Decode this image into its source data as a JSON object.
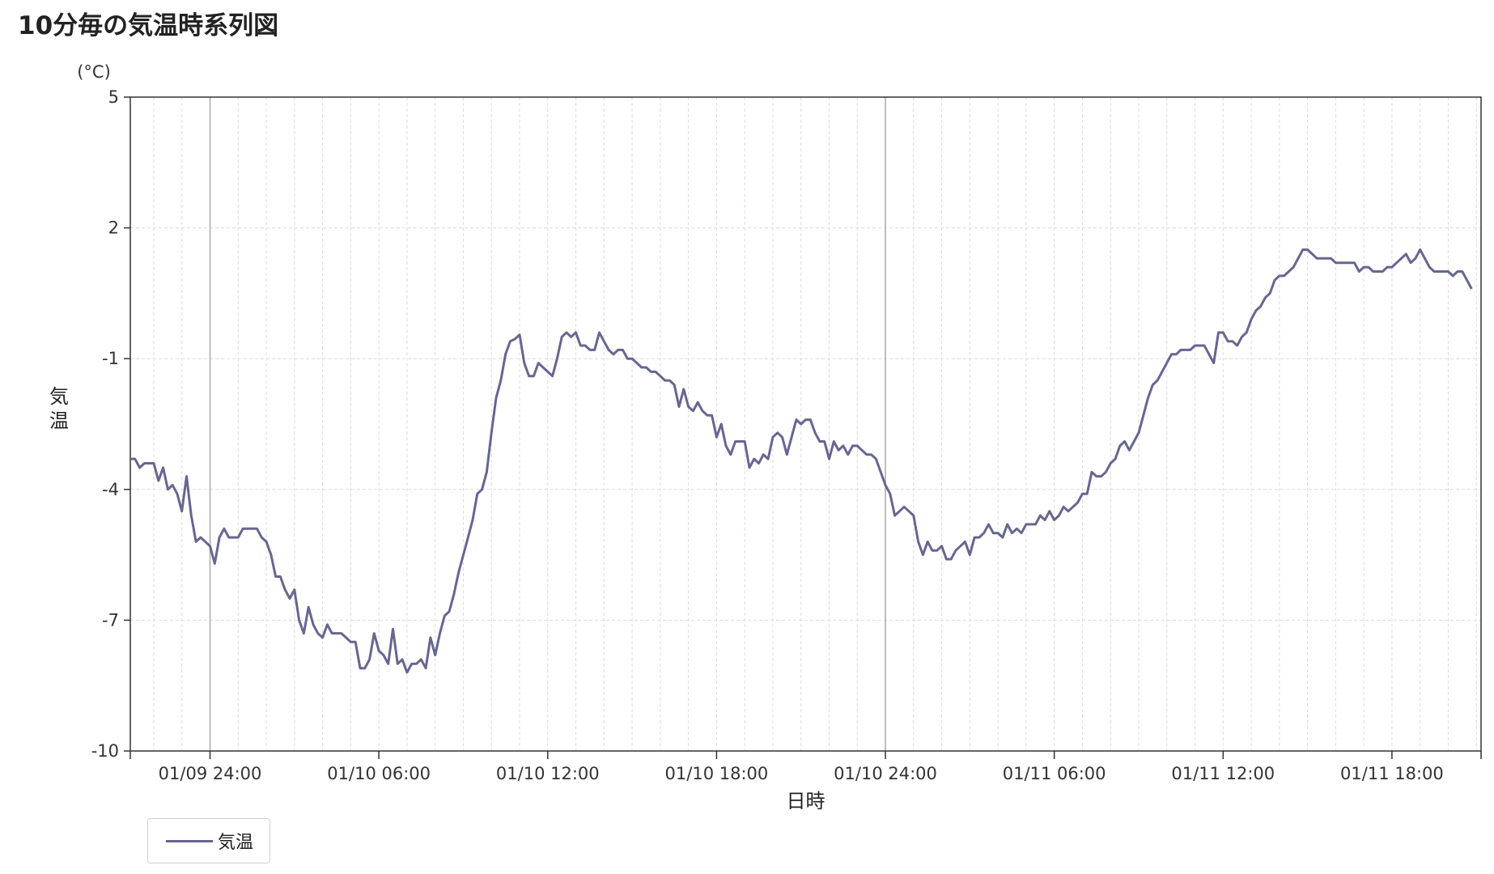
{
  "title": "10分毎の気温時系列図",
  "legend": {
    "label": "気温",
    "color": "#666690"
  },
  "chart_data": {
    "type": "line",
    "title": "10分毎の気温時系列図",
    "xlabel": "日時",
    "ylabel": "気温",
    "yunit": "(°C)",
    "ylim": [
      -10,
      5
    ],
    "yticks": [
      5,
      2,
      -1,
      -4,
      -7,
      -10
    ],
    "xrange": [
      "2025-01-09T21:10",
      "2025-01-11T21:10"
    ],
    "xticks": [
      {
        "time": "2025-01-10T00:00",
        "label": "01/09 24:00",
        "major": true
      },
      {
        "time": "2025-01-10T06:00",
        "label": "01/10 06:00",
        "major": false
      },
      {
        "time": "2025-01-10T12:00",
        "label": "01/10 12:00",
        "major": false
      },
      {
        "time": "2025-01-10T18:00",
        "label": "01/10 18:00",
        "major": false
      },
      {
        "time": "2025-01-11T00:00",
        "label": "01/10 24:00",
        "major": true
      },
      {
        "time": "2025-01-11T06:00",
        "label": "01/11 06:00",
        "major": false
      },
      {
        "time": "2025-01-11T12:00",
        "label": "01/11 12:00",
        "major": false
      },
      {
        "time": "2025-01-11T18:00",
        "label": "01/11 18:00",
        "major": false
      }
    ],
    "grid": true,
    "legend_position": "bottom-left",
    "series": [
      {
        "name": "気温",
        "color": "#666690",
        "interval_minutes": 10,
        "start": "2025-01-09T21:10",
        "values": [
          -3.3,
          -3.3,
          -3.5,
          -3.4,
          -3.4,
          -3.4,
          -3.8,
          -3.5,
          -4.0,
          -3.9,
          -4.1,
          -4.5,
          -3.7,
          -4.6,
          -5.2,
          -5.1,
          -5.2,
          -5.3,
          -5.7,
          -5.1,
          -4.9,
          -5.1,
          -5.1,
          -5.1,
          -4.9,
          -4.9,
          -4.9,
          -4.9,
          -5.1,
          -5.2,
          -5.5,
          -6.0,
          -6.0,
          -6.3,
          -6.5,
          -6.3,
          -7.0,
          -7.3,
          -6.7,
          -7.1,
          -7.3,
          -7.4,
          -7.1,
          -7.3,
          -7.3,
          -7.3,
          -7.4,
          -7.5,
          -7.5,
          -8.1,
          -8.1,
          -7.9,
          -7.3,
          -7.7,
          -7.8,
          -8.0,
          -7.2,
          -8.0,
          -7.9,
          -8.2,
          -8.0,
          -8.0,
          -7.9,
          -8.1,
          -7.4,
          -7.8,
          -7.3,
          -6.9,
          -6.8,
          -6.4,
          -5.9,
          -5.5,
          -5.1,
          -4.7,
          -4.1,
          -4.0,
          -3.6,
          -2.7,
          -1.9,
          -1.5,
          -0.9,
          -0.6,
          -0.55,
          -0.45,
          -1.1,
          -1.4,
          -1.4,
          -1.1,
          -1.2,
          -1.3,
          -1.4,
          -1.0,
          -0.5,
          -0.4,
          -0.5,
          -0.4,
          -0.7,
          -0.7,
          -0.8,
          -0.8,
          -0.4,
          -0.6,
          -0.8,
          -0.9,
          -0.8,
          -0.8,
          -1.0,
          -1.0,
          -1.1,
          -1.2,
          -1.2,
          -1.3,
          -1.3,
          -1.4,
          -1.5,
          -1.5,
          -1.6,
          -2.1,
          -1.7,
          -2.1,
          -2.2,
          -2.0,
          -2.2,
          -2.3,
          -2.3,
          -2.8,
          -2.5,
          -3.0,
          -3.2,
          -2.9,
          -2.9,
          -2.9,
          -3.5,
          -3.3,
          -3.4,
          -3.2,
          -3.3,
          -2.8,
          -2.7,
          -2.8,
          -3.2,
          -2.8,
          -2.4,
          -2.5,
          -2.4,
          -2.4,
          -2.7,
          -2.9,
          -2.9,
          -3.3,
          -2.9,
          -3.1,
          -3.0,
          -3.2,
          -3.0,
          -3.0,
          -3.1,
          -3.2,
          -3.2,
          -3.3,
          -3.6,
          -3.9,
          -4.1,
          -4.6,
          -4.5,
          -4.4,
          -4.5,
          -4.6,
          -5.2,
          -5.5,
          -5.2,
          -5.4,
          -5.4,
          -5.3,
          -5.6,
          -5.6,
          -5.4,
          -5.3,
          -5.2,
          -5.5,
          -5.1,
          -5.1,
          -5.0,
          -4.8,
          -5.0,
          -5.0,
          -5.1,
          -4.8,
          -5.0,
          -4.9,
          -5.0,
          -4.8,
          -4.8,
          -4.8,
          -4.6,
          -4.7,
          -4.5,
          -4.7,
          -4.6,
          -4.4,
          -4.5,
          -4.4,
          -4.3,
          -4.1,
          -4.1,
          -3.6,
          -3.7,
          -3.7,
          -3.6,
          -3.4,
          -3.3,
          -3.0,
          -2.9,
          -3.1,
          -2.9,
          -2.7,
          -2.3,
          -1.9,
          -1.6,
          -1.5,
          -1.3,
          -1.1,
          -0.9,
          -0.9,
          -0.8,
          -0.8,
          -0.8,
          -0.7,
          -0.7,
          -0.7,
          -0.9,
          -1.1,
          -0.4,
          -0.4,
          -0.6,
          -0.6,
          -0.7,
          -0.5,
          -0.4,
          -0.1,
          0.1,
          0.2,
          0.4,
          0.5,
          0.8,
          0.9,
          0.9,
          1.0,
          1.1,
          1.3,
          1.5,
          1.5,
          1.4,
          1.3,
          1.3,
          1.3,
          1.3,
          1.2,
          1.2,
          1.2,
          1.2,
          1.2,
          1.0,
          1.1,
          1.1,
          1.0,
          1.0,
          1.0,
          1.1,
          1.1,
          1.2,
          1.3,
          1.4,
          1.2,
          1.3,
          1.5,
          1.3,
          1.1,
          1.0,
          1.0,
          1.0,
          1.0,
          0.9,
          1.0,
          1.0,
          0.8,
          0.6
        ]
      }
    ]
  }
}
